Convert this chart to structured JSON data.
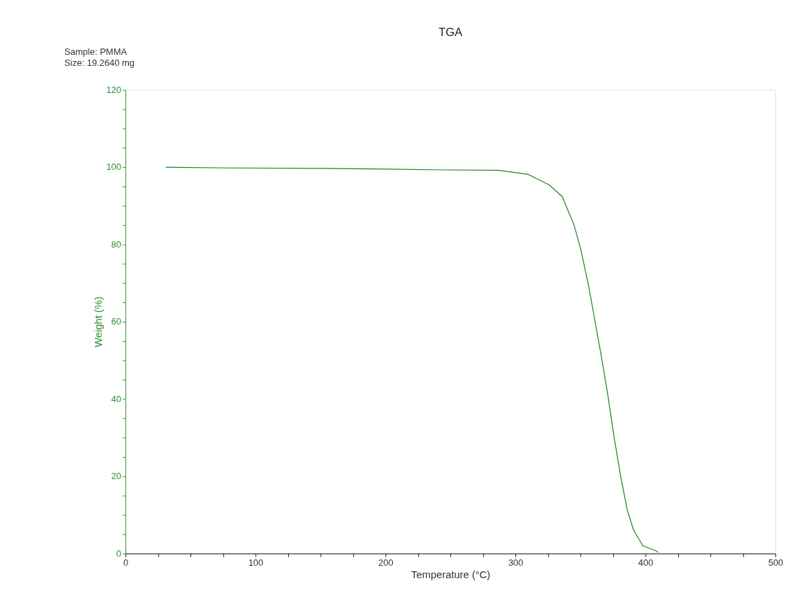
{
  "chart_data": {
    "type": "line",
    "title": "TGA",
    "xlabel": "Temperature (°C)",
    "ylabel": "Weight (%)",
    "annotations": [
      "Sample: PMMA",
      "Size:  19.2640 mg"
    ],
    "xlim": [
      0,
      500
    ],
    "ylim": [
      0,
      120
    ],
    "xticks": [
      0,
      {
        "value": 25,
        "label": null
      },
      {
        "value": 50,
        "label": null
      },
      {
        "value": 75,
        "label": null
      },
      100,
      {
        "value": 125,
        "label": null
      },
      {
        "value": 150,
        "label": null
      },
      {
        "value": 175,
        "label": null
      },
      200,
      {
        "value": 225,
        "label": null
      },
      {
        "value": 250,
        "label": null
      },
      {
        "value": 275,
        "label": null
      },
      300,
      {
        "value": 325,
        "label": null
      },
      {
        "value": 350,
        "label": null
      },
      {
        "value": 375,
        "label": null
      },
      400,
      {
        "value": 425,
        "label": null
      },
      {
        "value": 450,
        "label": null
      },
      {
        "value": 475,
        "label": null
      },
      500
    ],
    "yticks": [
      0,
      {
        "value": 5,
        "label": null
      },
      {
        "value": 10,
        "label": null
      },
      {
        "value": 15,
        "label": null
      },
      20,
      {
        "value": 25,
        "label": null
      },
      {
        "value": 30,
        "label": null
      },
      {
        "value": 35,
        "label": null
      },
      40,
      {
        "value": 45,
        "label": null
      },
      {
        "value": 50,
        "label": null
      },
      {
        "value": 55,
        "label": null
      },
      60,
      {
        "value": 65,
        "label": null
      },
      {
        "value": 70,
        "label": null
      },
      {
        "value": 75,
        "label": null
      },
      80,
      {
        "value": 85,
        "label": null
      },
      {
        "value": 90,
        "label": null
      },
      {
        "value": 95,
        "label": null
      },
      100,
      {
        "value": 105,
        "label": null
      },
      {
        "value": 110,
        "label": null
      },
      {
        "value": 115,
        "label": null
      },
      120
    ],
    "grid": false,
    "marker": "none",
    "line_style": "solid",
    "series": [
      {
        "color": "#1f7f1f",
        "x": [
          31,
          80,
          150,
          200,
          243,
          287,
          310,
          326,
          336,
          345,
          350,
          356,
          361,
          366,
          371,
          376,
          381,
          386,
          391,
          398,
          408,
          410
        ],
        "values": [
          100,
          99.8,
          99.7,
          99.5,
          99.3,
          99.2,
          98.1,
          95.4,
          92.4,
          85.1,
          79.1,
          69.8,
          60.5,
          51.2,
          41.2,
          29.9,
          19.9,
          11.3,
          6.0,
          2.0,
          0.7,
          0.3
        ]
      }
    ]
  }
}
